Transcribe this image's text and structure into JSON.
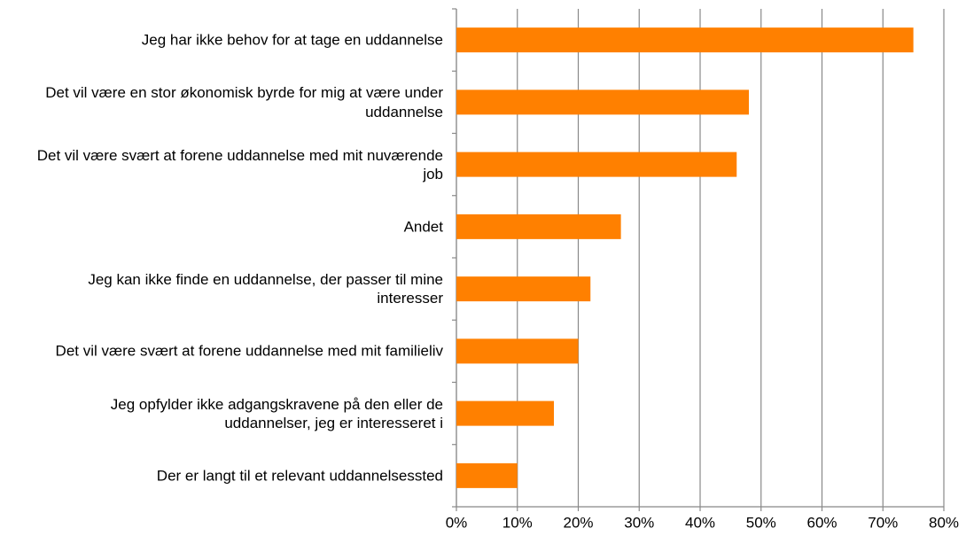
{
  "chart_data": {
    "type": "bar",
    "orientation": "horizontal",
    "categories": [
      "Jeg har ikke behov for at tage en uddannelse",
      "Det vil være en stor økonomisk byrde for mig at være under uddannelse",
      "Det vil være svært at forene uddannelse med mit nuværende job",
      "Andet",
      "Jeg kan ikke finde en uddannelse, der passer til mine interesser",
      "Det vil være svært at forene uddannelse med mit familieliv",
      "Jeg opfylder ikke adgangskravene på den eller de uddannelser, jeg er interesseret i",
      "Der er langt til et relevant uddannelsessted"
    ],
    "values": [
      75,
      48,
      46,
      27,
      22,
      20,
      16,
      10
    ],
    "color": "#ff8000",
    "xlim": [
      0,
      80
    ],
    "xticks": [
      {
        "value": 0,
        "label": "0%"
      },
      {
        "value": 10,
        "label": "10%"
      },
      {
        "value": 20,
        "label": "20%"
      },
      {
        "value": 30,
        "label": "30%"
      },
      {
        "value": 40,
        "label": "40%"
      },
      {
        "value": 50,
        "label": "50%"
      },
      {
        "value": 60,
        "label": "60%"
      },
      {
        "value": 70,
        "label": "70%"
      },
      {
        "value": 80,
        "label": "80%"
      }
    ],
    "grid": true
  }
}
